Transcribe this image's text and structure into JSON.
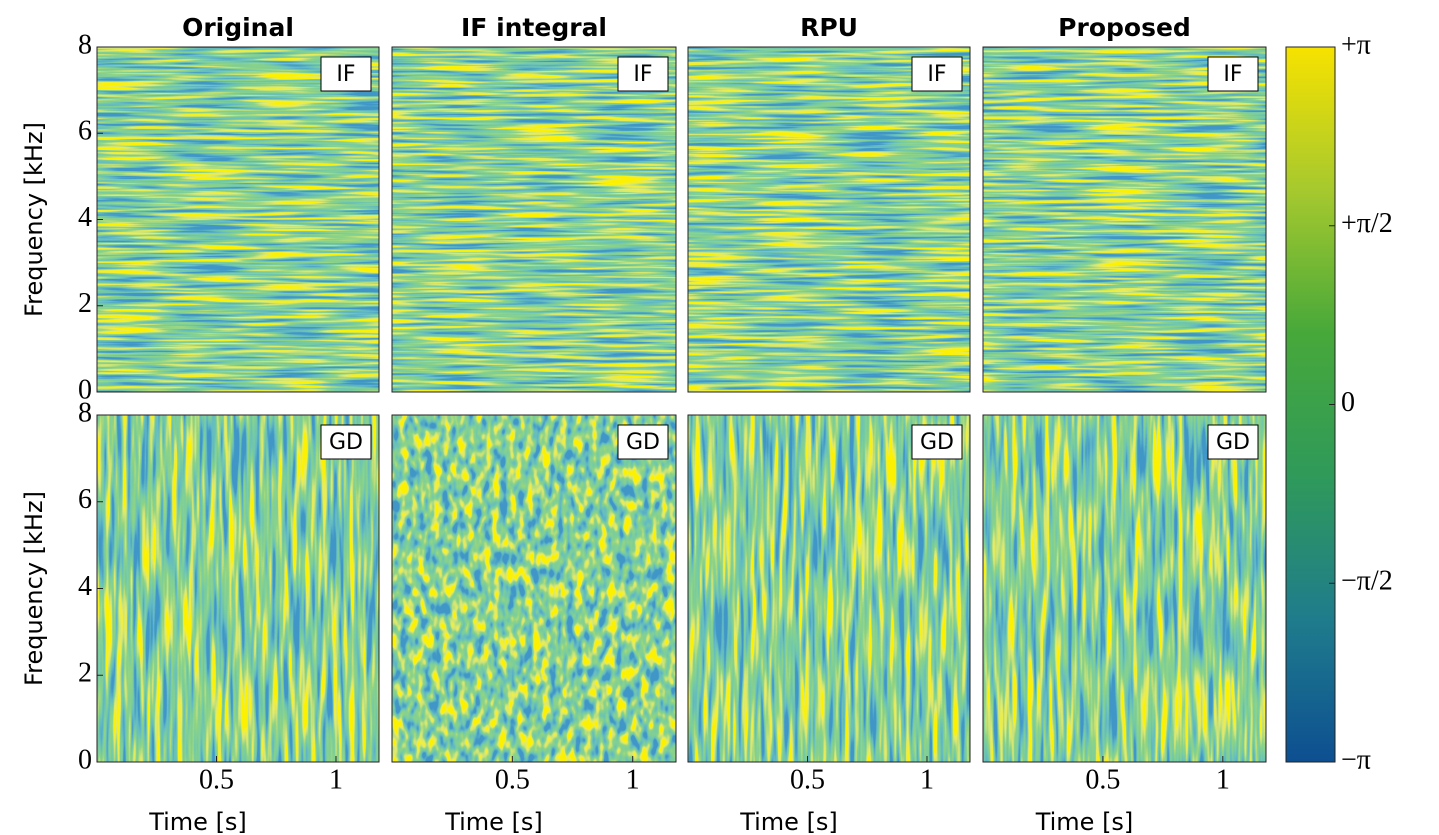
{
  "chart_data": {
    "type": "heatmap",
    "columns": [
      "Original",
      "IF integral",
      "RPU",
      "Proposed"
    ],
    "rows": [
      "IF",
      "GD"
    ],
    "x_label": "Time [s]",
    "y_label": "Frequency [kHz]",
    "xlim": [
      0,
      1.18
    ],
    "xticks": [
      0.5,
      1
    ],
    "ylim": [
      0,
      8
    ],
    "yticks": [
      0,
      2,
      4,
      6,
      8
    ],
    "colormap": [
      "#0d4f91",
      "#1f7c8c",
      "#2f9a5a",
      "#47a83a",
      "#a6c92e",
      "#f7e200"
    ],
    "colorbar": {
      "lim": [
        -3.141592653589793,
        3.141592653589793
      ],
      "ticks": [
        {
          "value": 3.141592653589793,
          "label": "+π"
        },
        {
          "value": 1.5707963267948966,
          "label": "+π/2"
        },
        0,
        {
          "value": -1.5707963267948966,
          "label": "−π/2"
        },
        {
          "value": -3.141592653589793,
          "label": "−π"
        }
      ]
    }
  }
}
